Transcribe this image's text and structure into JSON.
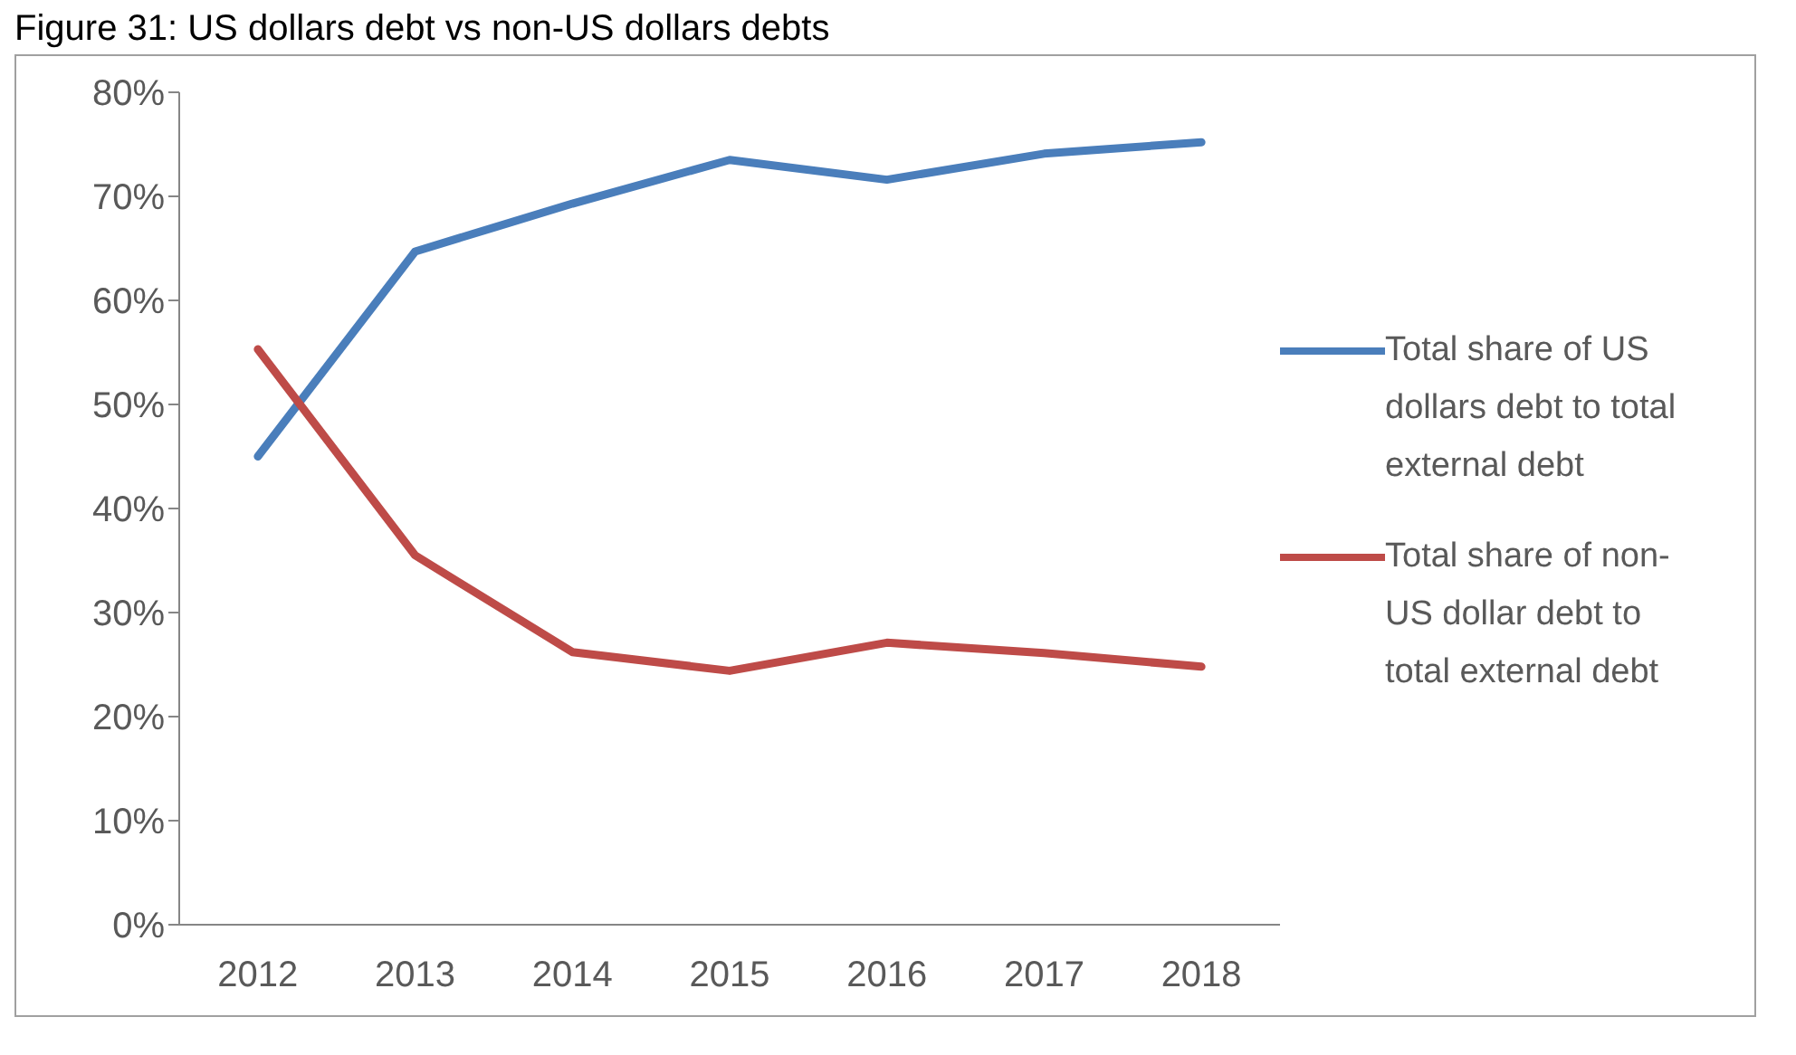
{
  "chart_data": {
    "type": "line",
    "title": "Figure 31: US dollars debt vs non-US dollars debts",
    "categories": [
      "2012",
      "2013",
      "2014",
      "2015",
      "2016",
      "2017",
      "2018"
    ],
    "series": [
      {
        "name": "Total share of US dollars debt to total external debt",
        "color": "#4a7ebb",
        "values": [
          45.0,
          64.7,
          69.3,
          73.5,
          71.6,
          74.1,
          75.2
        ]
      },
      {
        "name": "Total share of non-US dollar debt to total external debt",
        "color": "#be4b48",
        "values": [
          55.3,
          35.5,
          26.2,
          24.4,
          27.1,
          26.1,
          24.8
        ]
      }
    ],
    "ylim": [
      0,
      80
    ],
    "yticks": [
      {
        "value": 0,
        "label": "0%"
      },
      {
        "value": 10,
        "label": "10%"
      },
      {
        "value": 20,
        "label": "20%"
      },
      {
        "value": 30,
        "label": "30%"
      },
      {
        "value": 40,
        "label": "40%"
      },
      {
        "value": 50,
        "label": "50%"
      },
      {
        "value": 60,
        "label": "60%"
      },
      {
        "value": 70,
        "label": "70%"
      },
      {
        "value": 80,
        "label": "80%"
      }
    ],
    "grid": false,
    "legend": "right",
    "marker": "none",
    "line_style": "solid"
  }
}
